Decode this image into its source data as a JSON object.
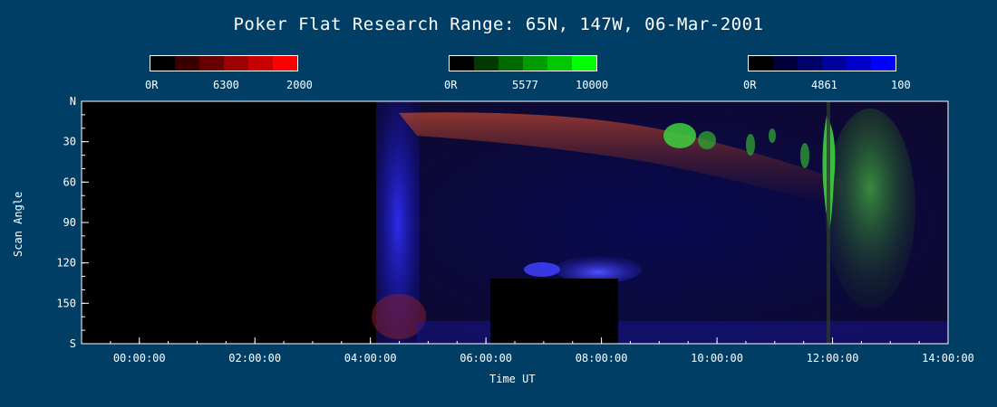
{
  "chart_data": {
    "type": "heatmap",
    "title": "Poker Flat Research Range: 65N, 147W, 06-Mar-2001",
    "xlabel": "Time UT",
    "ylabel": "Scan Angle",
    "x_ticks": [
      "00:00:00",
      "02:00:00",
      "04:00:00",
      "06:00:00",
      "08:00:00",
      "10:00:00",
      "12:00:00",
      "14:00:00"
    ],
    "x_range_hours": [
      -1.0,
      14.0
    ],
    "y_ticks": [
      "N",
      "30",
      "60",
      "90",
      "120",
      "150",
      "S"
    ],
    "y_range_deg": [
      0,
      180
    ],
    "no_data_regions": [
      {
        "t_start": -1.0,
        "t_end": 4.15,
        "angle_start": 0,
        "angle_end": 180
      },
      {
        "t_start": 6.2,
        "t_end": 8.55,
        "angle_start": 128,
        "angle_end": 180
      }
    ],
    "colorbars": [
      {
        "name": "6300",
        "min_label": "0R",
        "max_label": "2000",
        "colors": [
          "#000000",
          "#3a0000",
          "#690000",
          "#9c0000",
          "#c80000",
          "#ff0000"
        ]
      },
      {
        "name": "5577",
        "min_label": "0R",
        "max_label": "10000",
        "colors": [
          "#000000",
          "#003a00",
          "#006900",
          "#009c00",
          "#00c800",
          "#00ff00"
        ]
      },
      {
        "name": "4861",
        "min_label": "0R",
        "max_label": "100",
        "colors": [
          "#000000",
          "#00003a",
          "#000069",
          "#00009c",
          "#0000c8",
          "#0000ff"
        ]
      }
    ]
  }
}
